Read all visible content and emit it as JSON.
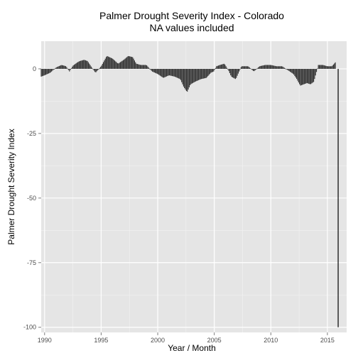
{
  "chart_data": {
    "type": "bar",
    "title": "Palmer Drought Severity Index - Colorado",
    "subtitle": "NA values included",
    "xlabel": "Year / Month",
    "ylabel": "Palmer Drought Severity Index",
    "xlim": [
      1989.7,
      2016.7
    ],
    "ylim": [
      -102,
      10.7
    ],
    "x_ticks": [
      1990,
      1995,
      2000,
      2005,
      2010,
      2015
    ],
    "x_tick_labels": [
      "1990",
      "1995",
      "2000",
      "2005",
      "2010",
      "2015"
    ],
    "y_ticks": [
      0,
      -25,
      -50,
      -75,
      -100
    ],
    "y_tick_labels": [
      "0",
      "-25",
      "-50",
      "-75",
      "-100"
    ],
    "grid": true,
    "bar_color": "#333333",
    "na_bar": {
      "x": 2015.95,
      "value": -99.99
    },
    "series": [
      {
        "name": "",
        "x": [
          1989.7,
          1990.0,
          1990.5,
          1991.0,
          1991.5,
          1991.9,
          1992.2,
          1992.5,
          1992.9,
          1993.1,
          1993.5,
          1993.8,
          1994.1,
          1994.5,
          1995.0,
          1995.5,
          1996.0,
          1996.5,
          1997.0,
          1997.4,
          1997.8,
          1998.1,
          1998.5,
          1999.0,
          1999.5,
          2000.0,
          2000.5,
          2001.0,
          2001.5,
          2002.0,
          2002.3,
          2002.6,
          2002.9,
          2003.3,
          2003.8,
          2004.3,
          2004.7,
          2004.95,
          2005.2,
          2005.5,
          2005.9,
          2006.3,
          2006.5,
          2006.9,
          2007.4,
          2008.0,
          2008.5,
          2009.0,
          2009.5,
          2010.0,
          2010.5,
          2011.0,
          2011.5,
          2012.0,
          2012.3,
          2012.6,
          2012.9,
          2013.2,
          2013.5,
          2013.8,
          2014.2,
          2014.6,
          2015.0,
          2015.4,
          2015.7
        ],
        "values": [
          -3,
          -2.5,
          -1.5,
          0.5,
          1.5,
          1,
          -1,
          1.2,
          2.5,
          3,
          3.5,
          3,
          1,
          -1.5,
          1,
          5,
          4,
          2,
          3.5,
          5,
          4.5,
          2,
          1.5,
          1.5,
          -1,
          -2,
          -3.5,
          -2.5,
          -3,
          -4,
          -7,
          -9,
          -6,
          -5,
          -4,
          -3.5,
          -1.5,
          -1,
          1,
          1.5,
          2,
          -1,
          -3,
          -4,
          1,
          1,
          -1,
          1,
          1.5,
          1.5,
          1,
          1,
          -0.5,
          -2,
          -4,
          -6.5,
          -6,
          -5.5,
          -6,
          -5,
          1.5,
          1.5,
          1,
          1,
          2.5
        ]
      }
    ]
  }
}
